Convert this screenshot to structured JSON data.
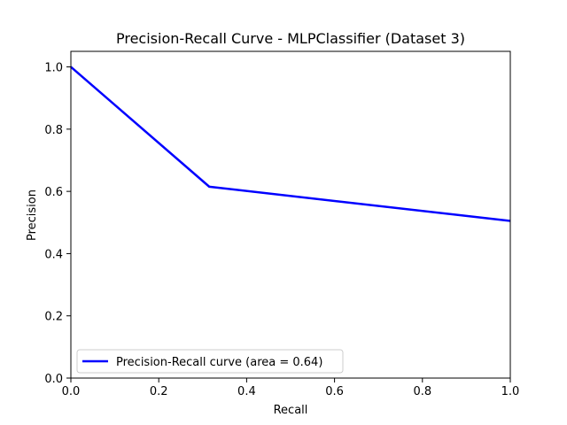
{
  "chart_data": {
    "type": "line",
    "title": "Precision-Recall Curve - MLPClassifier (Dataset 3)",
    "xlabel": "Recall",
    "ylabel": "Precision",
    "xlim": [
      0.0,
      1.0
    ],
    "ylim": [
      0.0,
      1.05
    ],
    "x_ticks": [
      "0.0",
      "0.2",
      "0.4",
      "0.6",
      "0.8",
      "1.0"
    ],
    "y_ticks": [
      "0.0",
      "0.2",
      "0.4",
      "0.6",
      "0.8",
      "1.0"
    ],
    "grid": false,
    "legend_position": "lower-left",
    "series": [
      {
        "name": "Precision-Recall curve (area = 0.64)",
        "color": "#0000ff",
        "x": [
          0.0,
          0.315,
          1.0
        ],
        "y": [
          1.0,
          0.615,
          0.505
        ]
      }
    ]
  }
}
